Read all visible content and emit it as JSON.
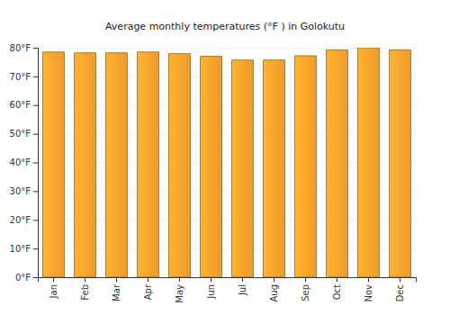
{
  "chart_data": {
    "type": "bar",
    "title": "Average monthly temperatures (°F ) in Golokutu",
    "categories": [
      "Jan",
      "Feb",
      "Mar",
      "Apr",
      "May",
      "Jun",
      "Jul",
      "Aug",
      "Sep",
      "Oct",
      "Nov",
      "Dec"
    ],
    "values": [
      78.5,
      78.2,
      78.2,
      78.5,
      77.9,
      77.0,
      75.7,
      75.7,
      77.2,
      79.2,
      80.0,
      79.2
    ],
    "color": "#fba42c",
    "ylim": [
      0,
      80
    ],
    "yticks": [
      {
        "value": 0,
        "label": "0°F"
      },
      {
        "value": 10,
        "label": "10°F"
      },
      {
        "value": 20,
        "label": "20°F"
      },
      {
        "value": 30,
        "label": "30°F"
      },
      {
        "value": 40,
        "label": "40°F"
      },
      {
        "value": 50,
        "label": "50°F"
      },
      {
        "value": 60,
        "label": "60°F"
      },
      {
        "value": 70,
        "label": "70°F"
      },
      {
        "value": 80,
        "label": "80°F"
      }
    ],
    "grid": true
  }
}
